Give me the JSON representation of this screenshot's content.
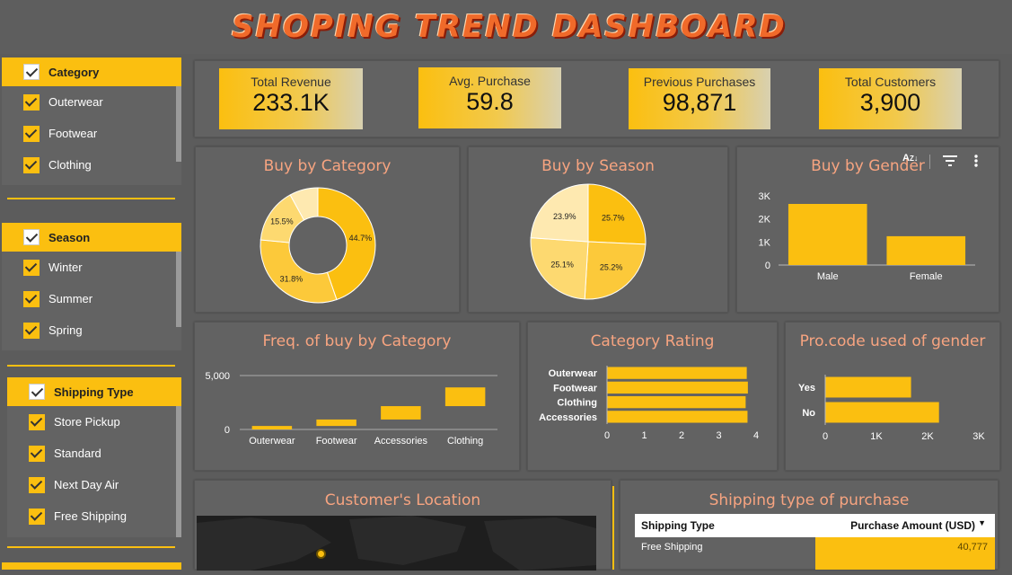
{
  "header": {
    "title": "SHOPING TREND DASHBOARD"
  },
  "filters": {
    "category": {
      "label": "Category",
      "items": [
        "Outerwear",
        "Footwear",
        "Clothing"
      ]
    },
    "season": {
      "label": "Season",
      "items": [
        "Winter",
        "Summer",
        "Spring"
      ]
    },
    "shipping": {
      "label": "Shipping Type",
      "items": [
        "Store Pickup",
        "Standard",
        "Next Day Air",
        "Free Shipping"
      ]
    }
  },
  "kpis": [
    {
      "label": "Total Revenue",
      "value": "233.1K"
    },
    {
      "label": "Avg. Purchase",
      "value": "59.8"
    },
    {
      "label": "Previous Purchases",
      "value": "98,871"
    },
    {
      "label": "Total Customers",
      "value": "3,900"
    }
  ],
  "colors": {
    "accent": "#fbbf10",
    "title": "#f7a480",
    "panel": "#626262"
  },
  "panels": {
    "category": "Buy by Category",
    "season": "Buy by Season",
    "gender": "Buy by Gender",
    "freq": "Freq. of buy by Category",
    "rating": "Category Rating",
    "promo": "Pro.code  used of gender",
    "location": "Customer's Location",
    "shipping": "Shipping type of purchase"
  },
  "toolbar_icons": [
    "sort-az-icon",
    "filter-icon",
    "more-vert-icon"
  ],
  "chart_data": [
    {
      "type": "pie",
      "title": "Buy by Category",
      "donut": true,
      "slices": [
        {
          "label": "44.7%",
          "value": 44.7,
          "color": "#fbbf10"
        },
        {
          "label": "31.8%",
          "value": 31.8,
          "color": "#fcc93a"
        },
        {
          "label": "15.5%",
          "value": 15.5,
          "color": "#fdd970"
        },
        {
          "label": "",
          "value": 8.0,
          "color": "#fee9b0"
        }
      ]
    },
    {
      "type": "pie",
      "title": "Buy by Season",
      "slices": [
        {
          "label": "25.7%",
          "value": 25.7,
          "color": "#fbbf10"
        },
        {
          "label": "25.2%",
          "value": 25.2,
          "color": "#fcc93a"
        },
        {
          "label": "25.1%",
          "value": 25.1,
          "color": "#fdd970"
        },
        {
          "label": "23.9%",
          "value": 23.9,
          "color": "#fee9b0"
        }
      ]
    },
    {
      "type": "bar",
      "title": "Buy by Gender",
      "categories": [
        "Male",
        "Female"
      ],
      "values": [
        2650,
        1250
      ],
      "yticks": [
        "0",
        "1K",
        "2K",
        "3K"
      ],
      "ylim": [
        0,
        3000
      ]
    },
    {
      "type": "bar",
      "title": "Freq. of buy by Category",
      "style": "floating",
      "categories": [
        "Outerwear",
        "Footwear",
        "Clothing"
      ],
      "extra_category": "Accessories",
      "x_order": [
        "Outerwear",
        "Footwear",
        "Accessories",
        "Clothing"
      ],
      "ranges": [
        [
          0,
          324
        ],
        [
          324,
          923
        ],
        [
          923,
          2163
        ],
        [
          2163,
          3900
        ]
      ],
      "yticks": [
        "0",
        "5,000"
      ],
      "ylim": [
        0,
        5000
      ]
    },
    {
      "type": "bar",
      "orientation": "horizontal",
      "title": "Category Rating",
      "categories": [
        "Outerwear",
        "Footwear",
        "Clothing",
        "Accessories"
      ],
      "values": [
        3.75,
        3.78,
        3.72,
        3.77
      ],
      "xticks": [
        "0",
        "1",
        "2",
        "3",
        "4"
      ],
      "xlim": [
        0,
        4
      ]
    },
    {
      "type": "bar",
      "orientation": "horizontal",
      "title": "Pro.code  used of gender",
      "categories": [
        "Yes",
        "No"
      ],
      "values": [
        1677,
        2223
      ],
      "xticks": [
        "0",
        "1K",
        "2K",
        "3K"
      ],
      "xlim": [
        0,
        3000
      ]
    },
    {
      "type": "table",
      "title": "Shipping type of purchase",
      "columns": [
        "Shipping Type",
        "Purchase Amount (USD)"
      ],
      "rows": [
        [
          "Free Shipping",
          "40,777"
        ]
      ]
    }
  ]
}
